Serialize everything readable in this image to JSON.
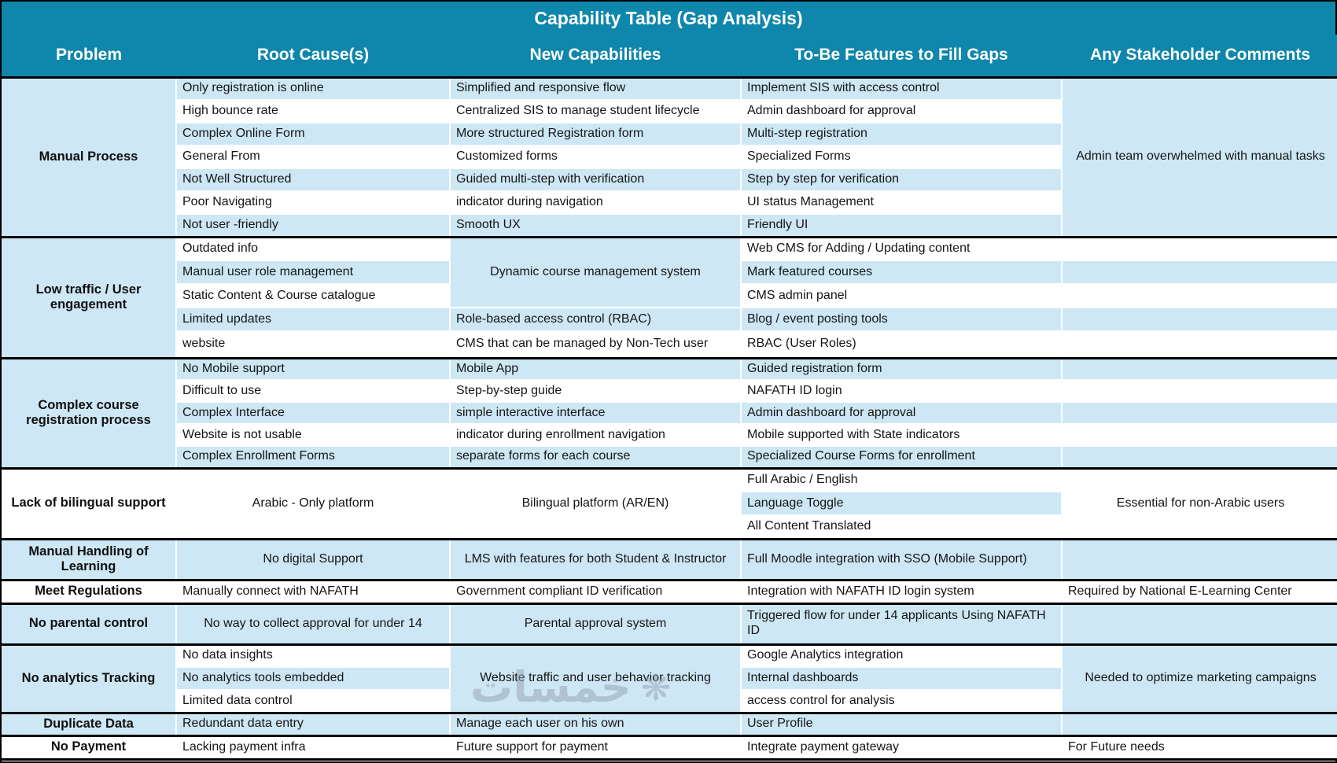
{
  "title": "Capability Table (Gap Analysis)",
  "columns": [
    "Problem",
    "Root Cause(s)",
    "New Capabilities",
    "To-Be Features to Fill Gaps",
    "Any Stakeholder Comments"
  ],
  "colors": {
    "header_bg": "#0f86ab",
    "header_text": "#ffffff",
    "row_blue": "#cde7f4",
    "row_white": "#ffffff",
    "border": "#000000",
    "body_text": "#151515"
  },
  "watermark": {
    "text": "خمسات",
    "symbol": "❋"
  },
  "groups": [
    {
      "problem": {
        "t": "Manual Process",
        "bg": "b"
      },
      "heights": [
        29,
        29,
        29,
        29,
        29,
        29,
        29
      ],
      "root": [
        {
          "t": "Only registration is online",
          "bg": "b"
        },
        {
          "t": "High bounce rate",
          "bg": "w"
        },
        {
          "t": "Complex Online Form",
          "bg": "b"
        },
        {
          "t": "General From",
          "bg": "w"
        },
        {
          "t": "Not Well Structured",
          "bg": "b"
        },
        {
          "t": "Poor Navigating",
          "bg": "w"
        },
        {
          "t": "Not user -friendly",
          "bg": "b"
        }
      ],
      "newcap": [
        {
          "t": "Simplified and responsive flow",
          "bg": "b"
        },
        {
          "t": "Centralized SIS to manage student lifecycle",
          "bg": "w"
        },
        {
          "t": "More structured Registration form",
          "bg": "b"
        },
        {
          "t": "Customized forms",
          "bg": "w"
        },
        {
          "t": "Guided multi-step with verification",
          "bg": "b"
        },
        {
          "t": "indicator during navigation",
          "bg": "w"
        },
        {
          "t": "Smooth UX",
          "bg": "b"
        }
      ],
      "tobe": [
        {
          "t": "Implement SIS with access control",
          "bg": "b"
        },
        {
          "t": "Admin dashboard for approval",
          "bg": "w"
        },
        {
          "t": "Multi-step registration",
          "bg": "b"
        },
        {
          "t": "Specialized Forms",
          "bg": "w"
        },
        {
          "t": "Step by step for verification",
          "bg": "b"
        },
        {
          "t": "UI status Management",
          "bg": "w"
        },
        {
          "t": "Friendly UI",
          "bg": "b"
        }
      ],
      "comments": [
        {
          "t": "Admin team overwhelmed with manual tasks",
          "s": 7,
          "bg": "b",
          "al": "c"
        }
      ]
    },
    {
      "problem": {
        "t": "Low traffic / User engagement",
        "bg": "b"
      },
      "heights": [
        30,
        30,
        30,
        30,
        34
      ],
      "root": [
        {
          "t": "Outdated info",
          "bg": "w"
        },
        {
          "t": "Manual user role management",
          "bg": "b"
        },
        {
          "t": "Static Content & Course catalogue",
          "bg": "w"
        },
        {
          "t": "Limited updates",
          "bg": "b"
        },
        {
          "t": "website",
          "bg": "w"
        }
      ],
      "newcap": [
        {
          "t": "Dynamic course management system",
          "s": 3,
          "bg": "b",
          "al": "c"
        },
        {
          "t": "Role-based access control (RBAC)",
          "bg": "b"
        },
        {
          "t": "CMS that can be managed by Non-Tech user",
          "bg": "w"
        }
      ],
      "tobe": [
        {
          "t": "Web CMS for Adding / Updating content",
          "bg": "w"
        },
        {
          "t": "Mark featured courses",
          "bg": "b"
        },
        {
          "t": "CMS admin panel",
          "bg": "w"
        },
        {
          "t": "Blog / event posting tools",
          "bg": "b"
        },
        {
          "t": "RBAC (User Roles)",
          "bg": "w"
        }
      ],
      "comments": [
        {
          "t": "",
          "bg": "w"
        },
        {
          "t": "",
          "bg": "b"
        },
        {
          "t": "",
          "bg": "w"
        },
        {
          "t": "",
          "bg": "b"
        },
        {
          "t": "",
          "bg": "w"
        }
      ]
    },
    {
      "problem": {
        "t": "Complex course registration process",
        "bg": "b"
      },
      "heights": [
        28,
        28,
        28,
        28,
        28
      ],
      "root": [
        {
          "t": "No Mobile support",
          "bg": "b"
        },
        {
          "t": "Difficult to use",
          "bg": "w"
        },
        {
          "t": "Complex Interface",
          "bg": "b"
        },
        {
          "t": "Website is not usable",
          "bg": "w"
        },
        {
          "t": "Complex Enrollment Forms",
          "bg": "b"
        }
      ],
      "newcap": [
        {
          "t": "Mobile App",
          "bg": "b"
        },
        {
          "t": "Step-by-step guide",
          "bg": "w"
        },
        {
          "t": "simple interactive interface",
          "bg": "b"
        },
        {
          "t": "indicator during enrollment navigation",
          "bg": "w"
        },
        {
          "t": "separate forms for each course",
          "bg": "b"
        }
      ],
      "tobe": [
        {
          "t": "Guided registration form",
          "bg": "b"
        },
        {
          "t": "NAFATH ID login",
          "bg": "w"
        },
        {
          "t": "Admin dashboard for approval",
          "bg": "b"
        },
        {
          "t": "Mobile supported with State indicators",
          "bg": "w"
        },
        {
          "t": "Specialized Course Forms for enrollment",
          "bg": "b"
        }
      ],
      "comments": [
        {
          "t": "",
          "bg": "b"
        },
        {
          "t": "",
          "bg": "w"
        },
        {
          "t": "",
          "bg": "b"
        },
        {
          "t": "",
          "bg": "w"
        },
        {
          "t": "",
          "bg": "b"
        }
      ]
    },
    {
      "problem": {
        "t": "Lack of bilingual support",
        "bg": "w"
      },
      "heights": [
        30,
        30,
        30
      ],
      "root": [
        {
          "t": "Arabic - Only platform",
          "s": 3,
          "bg": "w",
          "al": "c"
        }
      ],
      "newcap": [
        {
          "t": "Bilingual platform (AR/EN)",
          "s": 3,
          "bg": "w",
          "al": "c"
        }
      ],
      "tobe": [
        {
          "t": "Full Arabic / English",
          "bg": "w"
        },
        {
          "t": "Language Toggle",
          "bg": "b"
        },
        {
          "t": "All Content Translated",
          "bg": "w"
        }
      ],
      "comments": [
        {
          "t": "Essential for non-Arabic users",
          "s": 3,
          "bg": "w",
          "al": "c"
        }
      ]
    },
    {
      "problem": {
        "t": "Manual Handling of Learning",
        "bg": "b"
      },
      "heights": [
        52
      ],
      "root": [
        {
          "t": "No digital Support",
          "bg": "b",
          "al": "c"
        }
      ],
      "newcap": [
        {
          "t": "LMS with features for both Student & Instructor",
          "bg": "b",
          "al": "c"
        }
      ],
      "tobe": [
        {
          "t": "Full Moodle integration with SSO (Mobile Support)",
          "bg": "b"
        }
      ],
      "comments": [
        {
          "t": "",
          "bg": "b"
        }
      ]
    },
    {
      "problem": {
        "t": "Meet Regulations",
        "bg": "w"
      },
      "heights": [
        30
      ],
      "root": [
        {
          "t": "Manually connect with NAFATH",
          "bg": "w"
        }
      ],
      "newcap": [
        {
          "t": "Government compliant ID verification",
          "bg": "w"
        }
      ],
      "tobe": [
        {
          "t": "Integration with NAFATH ID login system",
          "bg": "w"
        }
      ],
      "comments": [
        {
          "t": "Required by National E-Learning Center",
          "bg": "w"
        }
      ]
    },
    {
      "problem": {
        "t": "No parental control",
        "bg": "b"
      },
      "heights": [
        52
      ],
      "root": [
        {
          "t": "No way to collect approval for under 14",
          "bg": "b",
          "al": "c"
        }
      ],
      "newcap": [
        {
          "t": "Parental approval system",
          "bg": "b",
          "al": "c"
        }
      ],
      "tobe": [
        {
          "t": "Triggered flow for under 14 applicants Using NAFATH ID",
          "bg": "b"
        }
      ],
      "comments": [
        {
          "t": "",
          "bg": "b"
        }
      ]
    },
    {
      "problem": {
        "t": "No analytics Tracking",
        "bg": "b"
      },
      "heights": [
        29,
        29,
        29
      ],
      "root": [
        {
          "t": "No data insights",
          "bg": "w"
        },
        {
          "t": "No analytics tools embedded",
          "bg": "b"
        },
        {
          "t": "Limited data control",
          "bg": "w"
        }
      ],
      "newcap": [
        {
          "t": "Website traffic and user behavior tracking",
          "s": 3,
          "bg": "b",
          "al": "c"
        }
      ],
      "tobe": [
        {
          "t": "Google Analytics integration",
          "bg": "w"
        },
        {
          "t": "Internal dashboards",
          "bg": "b"
        },
        {
          "t": "access control for analysis",
          "bg": "w"
        }
      ],
      "comments": [
        {
          "t": "Needed to optimize marketing campaigns",
          "s": 3,
          "bg": "b",
          "al": "c"
        }
      ]
    },
    {
      "problem": {
        "t": "Duplicate Data",
        "bg": "b"
      },
      "heights": [
        29
      ],
      "root": [
        {
          "t": "Redundant data entry",
          "bg": "b"
        }
      ],
      "newcap": [
        {
          "t": "Manage each user on his own",
          "bg": "b"
        }
      ],
      "tobe": [
        {
          "t": "User Profile",
          "bg": "b"
        }
      ],
      "comments": [
        {
          "t": "",
          "bg": "b"
        }
      ]
    },
    {
      "problem": {
        "t": "No Payment",
        "bg": "w"
      },
      "heights": [
        30
      ],
      "root": [
        {
          "t": "Lacking payment infra",
          "bg": "w"
        }
      ],
      "newcap": [
        {
          "t": "Future support for payment",
          "bg": "w"
        }
      ],
      "tobe": [
        {
          "t": "Integrate payment gateway",
          "bg": "w"
        }
      ],
      "comments": [
        {
          "t": "For Future needs",
          "bg": "w"
        }
      ]
    }
  ]
}
